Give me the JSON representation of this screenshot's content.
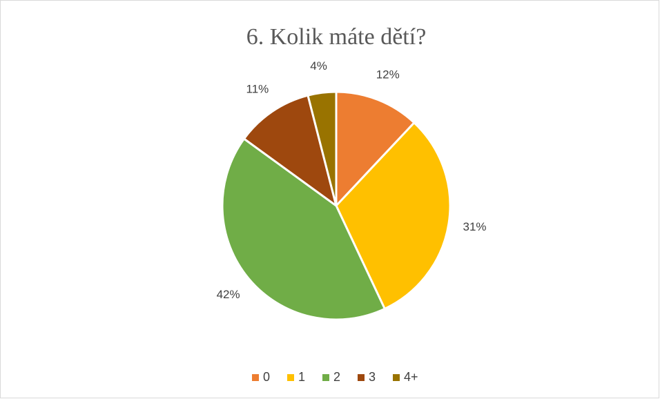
{
  "chart_data": {
    "type": "pie",
    "title": "6. Kolik máte dětí?",
    "categories": [
      "0",
      "1",
      "2",
      "3",
      "4+"
    ],
    "values": [
      12,
      31,
      42,
      11,
      4
    ],
    "value_labels": [
      "12%",
      "31%",
      "42%",
      "11%",
      "4%"
    ],
    "colors": [
      "#ED7D31",
      "#FFC000",
      "#70AD47",
      "#9E480E",
      "#997300"
    ],
    "legend": "bottom"
  }
}
